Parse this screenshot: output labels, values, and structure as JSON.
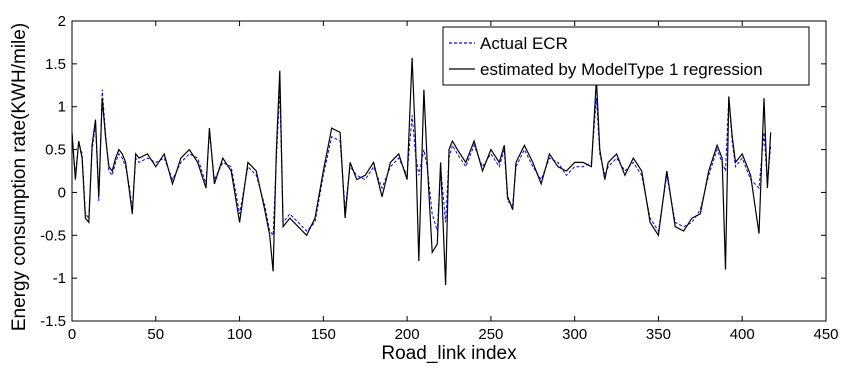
{
  "chart_data": {
    "type": "line",
    "title": "",
    "xlabel": "Road_link index",
    "ylabel": "Energy consumption rate(KWH/mile)",
    "xlim": [
      0,
      450
    ],
    "ylim": [
      -1.5,
      2
    ],
    "x_ticks": [
      "0",
      "50",
      "100",
      "150",
      "200",
      "250",
      "300",
      "350",
      "400",
      "450"
    ],
    "y_ticks": [
      "-1.5",
      "-1",
      "-0.5",
      "0",
      "0.5",
      "1",
      "1.5",
      "2"
    ],
    "grid": false,
    "legend_position": "top-right",
    "series": [
      {
        "name": "Actual ECR",
        "color": "#0000ff",
        "style": "dashed",
        "x": [
          0,
          2,
          4,
          6,
          8,
          10,
          12,
          14,
          16,
          18,
          20,
          22,
          24,
          26,
          28,
          30,
          32,
          34,
          36,
          38,
          40,
          45,
          50,
          55,
          60,
          65,
          70,
          75,
          80,
          82,
          85,
          90,
          95,
          100,
          105,
          110,
          115,
          118,
          120,
          122,
          124,
          126,
          130,
          135,
          140,
          145,
          150,
          155,
          160,
          163,
          166,
          170,
          175,
          180,
          185,
          190,
          195,
          200,
          203,
          205,
          207,
          210,
          212,
          215,
          218,
          220,
          223,
          225,
          227,
          230,
          235,
          240,
          245,
          250,
          255,
          258,
          260,
          263,
          265,
          270,
          275,
          280,
          285,
          290,
          295,
          300,
          305,
          310,
          313,
          315,
          318,
          320,
          325,
          330,
          335,
          340,
          345,
          350,
          355,
          360,
          365,
          370,
          375,
          380,
          385,
          388,
          390,
          392,
          394,
          396,
          400,
          405,
          410,
          413,
          415,
          417
        ],
        "y": [
          0.65,
          0.2,
          0.58,
          0.45,
          -0.25,
          -0.3,
          0.5,
          0.8,
          -0.1,
          1.2,
          0.7,
          0.25,
          0.2,
          0.35,
          0.45,
          0.4,
          0.3,
          0.1,
          -0.2,
          0.4,
          0.35,
          0.4,
          0.35,
          0.4,
          0.15,
          0.35,
          0.45,
          0.4,
          0.1,
          0.7,
          0.15,
          0.35,
          0.3,
          -0.25,
          0.3,
          0.2,
          -0.15,
          -0.45,
          -0.5,
          0.4,
          1.2,
          -0.35,
          -0.25,
          -0.35,
          -0.45,
          -0.35,
          0.2,
          0.65,
          0.6,
          -0.2,
          0.3,
          0.2,
          0.15,
          0.3,
          0.05,
          0.3,
          0.4,
          0.2,
          0.9,
          0.45,
          0.2,
          0.5,
          0.3,
          -0.25,
          -0.45,
          0.3,
          -0.35,
          0.4,
          0.55,
          0.45,
          0.3,
          0.55,
          0.3,
          0.45,
          0.3,
          0.5,
          -0.1,
          -0.15,
          0.3,
          0.5,
          0.3,
          0.15,
          0.4,
          0.35,
          0.2,
          0.3,
          0.3,
          0.35,
          1.1,
          0.45,
          0.2,
          0.3,
          0.4,
          0.25,
          0.35,
          0.2,
          -0.3,
          -0.45,
          0.2,
          -0.35,
          -0.4,
          -0.35,
          -0.2,
          0.2,
          0.5,
          0.35,
          0.25,
          1.1,
          0.6,
          0.3,
          0.4,
          0.15,
          0.05,
          0.7,
          0.1,
          0.55
        ]
      },
      {
        "name": "estimated by ModelType 1 regression",
        "color": "#000000",
        "style": "solid",
        "x": [
          0,
          2,
          4,
          6,
          8,
          10,
          12,
          14,
          16,
          18,
          20,
          22,
          24,
          26,
          28,
          30,
          32,
          34,
          36,
          38,
          40,
          45,
          50,
          55,
          60,
          65,
          70,
          75,
          80,
          82,
          85,
          90,
          95,
          100,
          105,
          110,
          115,
          118,
          120,
          122,
          124,
          126,
          130,
          135,
          140,
          145,
          150,
          155,
          160,
          163,
          166,
          170,
          175,
          180,
          185,
          190,
          195,
          200,
          203,
          205,
          207,
          210,
          212,
          215,
          218,
          220,
          223,
          225,
          227,
          230,
          235,
          240,
          245,
          250,
          255,
          258,
          260,
          263,
          265,
          270,
          275,
          280,
          285,
          290,
          295,
          300,
          305,
          310,
          313,
          315,
          318,
          320,
          325,
          330,
          335,
          340,
          345,
          350,
          355,
          360,
          365,
          370,
          375,
          380,
          385,
          388,
          390,
          392,
          394,
          396,
          400,
          405,
          410,
          413,
          415,
          417
        ],
        "y": [
          0.7,
          0.15,
          0.6,
          0.4,
          -0.3,
          -0.35,
          0.55,
          0.85,
          -0.05,
          1.1,
          0.65,
          0.3,
          0.25,
          0.4,
          0.5,
          0.45,
          0.35,
          0.05,
          -0.25,
          0.45,
          0.4,
          0.45,
          0.3,
          0.45,
          0.1,
          0.4,
          0.5,
          0.35,
          0.05,
          0.75,
          0.1,
          0.4,
          0.25,
          -0.35,
          0.35,
          0.25,
          -0.2,
          -0.5,
          -0.92,
          0.5,
          1.42,
          -0.4,
          -0.3,
          -0.4,
          -0.5,
          -0.3,
          0.25,
          0.75,
          0.7,
          -0.3,
          0.35,
          0.15,
          0.2,
          0.35,
          -0.05,
          0.35,
          0.45,
          0.15,
          1.57,
          0.6,
          -0.8,
          1.2,
          0.35,
          -0.7,
          -0.6,
          0.35,
          -1.08,
          0.5,
          0.6,
          0.5,
          0.35,
          0.6,
          0.25,
          0.5,
          0.35,
          0.55,
          -0.05,
          -0.2,
          0.35,
          0.55,
          0.35,
          0.1,
          0.45,
          0.3,
          0.25,
          0.35,
          0.35,
          0.3,
          1.32,
          0.5,
          0.15,
          0.35,
          0.45,
          0.2,
          0.4,
          0.25,
          -0.35,
          -0.5,
          0.25,
          -0.4,
          -0.45,
          -0.3,
          -0.25,
          0.25,
          0.55,
          0.4,
          -0.9,
          1.12,
          0.65,
          0.35,
          0.45,
          0.2,
          -0.48,
          1.1,
          0.05,
          0.7
        ]
      }
    ]
  }
}
